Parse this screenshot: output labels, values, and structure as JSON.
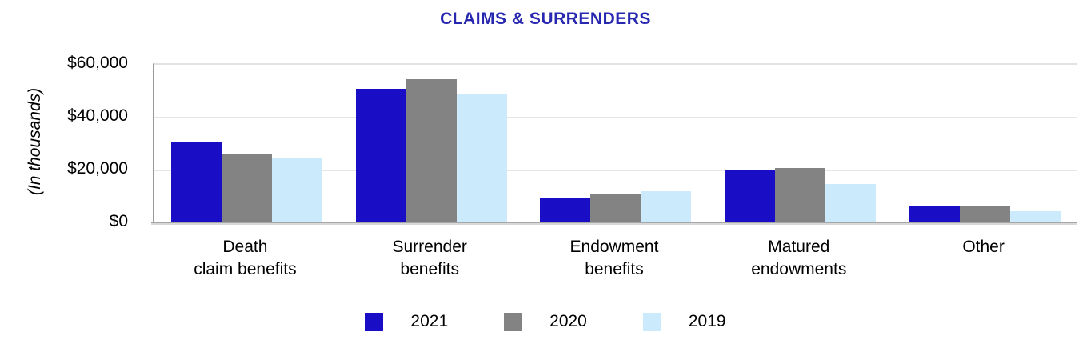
{
  "title": "CLAIMS & SURRENDERS",
  "colors": {
    "title_blue": "#2727b0",
    "series_2021": "#1a0dc6",
    "series_2020": "#838383",
    "series_2019": "#cbeafb",
    "gridline": "#e6e6e6",
    "axis_line": "#a6a6a6"
  },
  "chart_data": {
    "type": "bar",
    "title": "CLAIMS & SURRENDERS",
    "xlabel": "",
    "ylabel": "(In thousands)",
    "ylim": [
      0,
      60000
    ],
    "y_ticks": [
      "$60,000",
      "$40,000",
      "$20,000",
      "$0"
    ],
    "grid": true,
    "legend_position": "bottom",
    "categories": [
      "Death\nclaim benefits",
      "Surrender\nbenefits",
      "Endowment\nbenefits",
      "Matured\nendowments",
      "Other"
    ],
    "series": [
      {
        "name": "2021",
        "color": "#1a0dc6",
        "values": [
          31000,
          51000,
          9500,
          20000,
          6500
        ]
      },
      {
        "name": "2020",
        "color": "#838383",
        "values": [
          26500,
          54500,
          11000,
          21000,
          6500
        ]
      },
      {
        "name": "2019",
        "color": "#cbeafb",
        "values": [
          24500,
          49000,
          12000,
          15000,
          4500
        ]
      }
    ]
  }
}
